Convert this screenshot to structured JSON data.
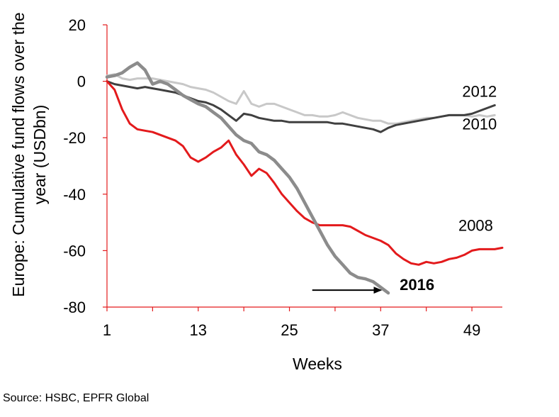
{
  "chart_data": {
    "type": "line",
    "ylabel": "Europe: Cumulative fund flows over the year (USDbn)",
    "ylabel_lines": [
      "Europe: Cumulative fund flows over the",
      "year (USDbn)"
    ],
    "xlabel": "Weeks",
    "xticks": [
      1,
      13,
      25,
      37,
      49
    ],
    "yticks": [
      20,
      0,
      -20,
      -40,
      -60,
      -80
    ],
    "xlim": [
      1,
      53
    ],
    "ylim": [
      -80,
      20
    ],
    "grid": false,
    "series": [
      {
        "name": "2010",
        "color": "#c8c8c8",
        "x": [
          1,
          2,
          3,
          4,
          5,
          6,
          7,
          8,
          9,
          10,
          11,
          12,
          13,
          14,
          15,
          16,
          17,
          18,
          19,
          20,
          21,
          22,
          23,
          24,
          25,
          26,
          27,
          28,
          29,
          30,
          31,
          32,
          33,
          34,
          35,
          36,
          37,
          38,
          39,
          40,
          41,
          42,
          43,
          44,
          45,
          46,
          47,
          48,
          49,
          50,
          51,
          52
        ],
        "values": [
          2,
          2.5,
          1,
          0.5,
          1,
          1,
          1,
          0.5,
          0,
          -0.5,
          -1,
          -2,
          -2.5,
          -3,
          -4,
          -5.5,
          -7,
          -8,
          -3.5,
          -8,
          -9,
          -8,
          -8,
          -9,
          -10,
          -11,
          -12,
          -12,
          -12.5,
          -12.5,
          -12,
          -11,
          -12,
          -13,
          -13.5,
          -14,
          -14,
          -15,
          -15,
          -14.5,
          -14,
          -13.5,
          -13,
          -13,
          -12.5,
          -12,
          -12,
          -12,
          -12.5,
          -12,
          -12.5,
          -12
        ]
      },
      {
        "name": "2012",
        "color": "#404040",
        "x": [
          1,
          2,
          3,
          4,
          5,
          6,
          7,
          8,
          9,
          10,
          11,
          12,
          13,
          14,
          15,
          16,
          17,
          18,
          19,
          20,
          21,
          22,
          23,
          24,
          25,
          26,
          27,
          28,
          29,
          30,
          31,
          32,
          33,
          34,
          35,
          36,
          37,
          38,
          39,
          40,
          41,
          42,
          43,
          44,
          45,
          46,
          47,
          48,
          49,
          50,
          51,
          52
        ],
        "values": [
          0,
          -1,
          -1.5,
          -2,
          -2.5,
          -2,
          -2.5,
          -3,
          -3.5,
          -4,
          -5,
          -6,
          -7,
          -7.5,
          -8.5,
          -10,
          -12,
          -14,
          -11.5,
          -12,
          -13,
          -13.5,
          -14,
          -14,
          -14.5,
          -14.5,
          -14.5,
          -14.5,
          -14.5,
          -14.5,
          -15,
          -15,
          -15.5,
          -16,
          -16.5,
          -17,
          -18,
          -16.5,
          -15.5,
          -15,
          -14.5,
          -14,
          -13.5,
          -13,
          -12.5,
          -12,
          -12,
          -12,
          -11.5,
          -10.5,
          -9.5,
          -8.5
        ]
      },
      {
        "name": "2008",
        "color": "#e31a1c",
        "x": [
          1,
          2,
          3,
          4,
          5,
          6,
          7,
          8,
          9,
          10,
          11,
          12,
          13,
          14,
          15,
          16,
          17,
          18,
          19,
          20,
          21,
          22,
          23,
          24,
          25,
          26,
          27,
          28,
          29,
          30,
          31,
          32,
          33,
          34,
          35,
          36,
          37,
          38,
          39,
          40,
          41,
          42,
          43,
          44,
          45,
          46,
          47,
          48,
          49,
          50,
          51,
          52,
          53
        ],
        "values": [
          0,
          -3,
          -10,
          -15,
          -17,
          -17.5,
          -18,
          -19,
          -20,
          -21,
          -23,
          -27,
          -28.5,
          -27,
          -25,
          -23.5,
          -21,
          -26,
          -29.5,
          -33.5,
          -31,
          -32.5,
          -36,
          -40,
          -43,
          -46,
          -48.5,
          -50,
          -51,
          -51,
          -51,
          -51,
          -51.5,
          -53,
          -54.5,
          -55.5,
          -56.5,
          -58,
          -61,
          -63,
          -64.5,
          -65,
          -64,
          -64.5,
          -64,
          -63,
          -62.5,
          -61.5,
          -60,
          -59.5,
          -59.5,
          -59.5,
          -59
        ]
      },
      {
        "name": "2016",
        "color": "#8c8c8c",
        "x": [
          1,
          2,
          3,
          4,
          5,
          6,
          7,
          8,
          9,
          10,
          11,
          12,
          13,
          14,
          15,
          16,
          17,
          18,
          19,
          20,
          21,
          22,
          23,
          24,
          25,
          26,
          27,
          28,
          29,
          30,
          31,
          32,
          33,
          34,
          35,
          36,
          37,
          38
        ],
        "values": [
          1.5,
          2,
          3,
          5,
          6.5,
          4,
          -1,
          0,
          -1,
          -3,
          -5,
          -6.5,
          -8,
          -9,
          -11,
          -13,
          -16,
          -19,
          -21,
          -22,
          -25,
          -26,
          -28,
          -31,
          -34,
          -38,
          -43,
          -48,
          -53,
          -58,
          -62,
          -65,
          -68,
          -69.5,
          -70,
          -71,
          -73,
          -75
        ]
      }
    ],
    "annotations": [
      {
        "text": "2012",
        "x": 50,
        "y": -5.5,
        "anchor": "middle",
        "bold": false
      },
      {
        "text": "2010",
        "x": 50,
        "y": -17,
        "anchor": "middle",
        "bold": false
      },
      {
        "text": "2008",
        "x": 49.5,
        "y": -53,
        "anchor": "middle",
        "bold": false
      },
      {
        "text": "2016",
        "x": 39.5,
        "y": -74,
        "anchor": "start",
        "bold": true
      }
    ],
    "arrow": {
      "x_from": 28,
      "x_to": 37,
      "y": -74
    }
  },
  "source": "Source: HSBC, EPFR Global"
}
